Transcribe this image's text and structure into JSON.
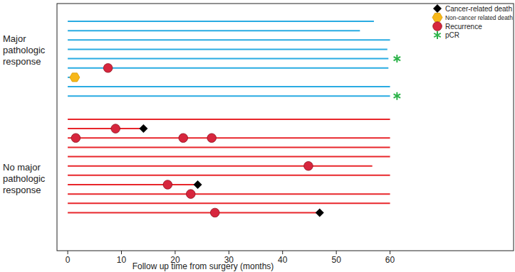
{
  "chart_data": {
    "type": "swimmer",
    "x_label": "Follow up time from surgery (months)",
    "xlim": [
      -2,
      83
    ],
    "xticks": [
      0,
      10,
      20,
      30,
      40,
      50,
      60
    ],
    "legend": "upper right",
    "groups": [
      {
        "label": [
          "Major",
          "pathologic",
          "response"
        ],
        "color": "#29abe2",
        "ends": [
          57,
          54.4,
          60,
          59.5,
          59.7,
          59.7,
          1.3,
          60,
          60
        ]
      },
      {
        "label": [
          "No major",
          "pathologic",
          "response"
        ],
        "color": "#e8262b",
        "ends": [
          60,
          14.1,
          60,
          60,
          60,
          56.7,
          60,
          24.2,
          60,
          60,
          46.9
        ]
      }
    ],
    "series": [
      {
        "name": "Cancer-related death",
        "marker": "diamond",
        "color": "#000000",
        "values": [
          [],
          [],
          [],
          [],
          [],
          [],
          [],
          [],
          [],
          [],
          [
            14.1
          ],
          [],
          [],
          [],
          [],
          [],
          [
            24.2
          ],
          [],
          [],
          [
            46.9
          ]
        ]
      },
      {
        "name": "Non-cancer related death",
        "marker": "hexagon",
        "color": "#f7b718",
        "values": [
          [],
          [],
          [],
          [],
          [],
          [],
          [
            1.3
          ],
          [],
          [],
          [],
          [],
          [],
          [],
          [],
          [],
          [],
          [],
          [],
          [],
          []
        ]
      },
      {
        "name": "Recurrence",
        "marker": "circle",
        "color": "#d7263d",
        "values": [
          [],
          [],
          [],
          [],
          [],
          [
            7.5
          ],
          [],
          [],
          [],
          [],
          [
            8.9
          ],
          [
            1.5,
            21.5,
            26.8
          ],
          [],
          [],
          [
            44.8
          ],
          [],
          [
            18.6
          ],
          [
            22.9
          ],
          [],
          [
            27.4
          ]
        ]
      },
      {
        "name": "pCR",
        "marker": "asterisk",
        "color": "#2db34a",
        "values": [
          [],
          [],
          [],
          [],
          [
            61.3
          ],
          [],
          [],
          [],
          [
            61.3
          ],
          [],
          [],
          [],
          [],
          [],
          [],
          [],
          [],
          [],
          [],
          []
        ]
      }
    ]
  }
}
